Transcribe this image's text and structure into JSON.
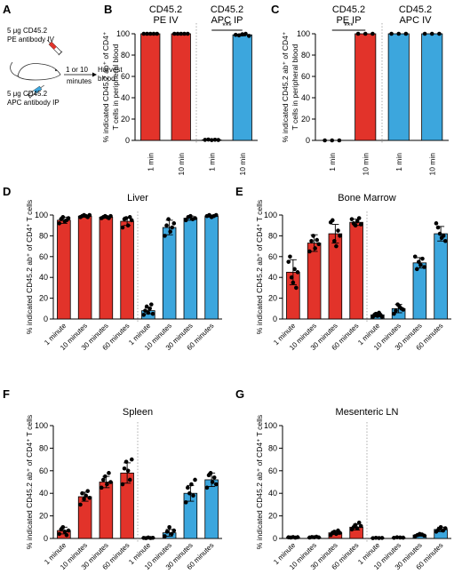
{
  "colors": {
    "red": "#e2332a",
    "blue": "#3ca6dd",
    "point": "#000000",
    "axis": "#000000",
    "divider": "#9a9a9a"
  },
  "panel_letters": [
    "A",
    "B",
    "C",
    "D",
    "E",
    "F",
    "G"
  ],
  "schematic": {
    "pe_dose": "5 μg CD45.2",
    "pe_route": "PE antibody IV",
    "apc_dose": "5 μg CD45.2",
    "apc_route": "APC antibody IP",
    "interval_1": "1 or 10",
    "interval_2": "minutes",
    "harvest_1": "Harvest",
    "harvest_2": "blood",
    "syringe_icon": "syringe-icon",
    "mouse_icon": "mouse-icon"
  },
  "chart_data": [
    {
      "id": "B",
      "type": "bar",
      "ylabel_lines": [
        "% indicated CD45.2 ab⁺ of CD4⁺",
        "T cells in peripheral blood"
      ],
      "ylim": [
        0,
        100
      ],
      "yticks": [
        0,
        20,
        40,
        60,
        80,
        100
      ],
      "group_headers": [
        {
          "lines": [
            "CD45.2",
            "PE IV"
          ],
          "color": "#e2332a"
        },
        {
          "lines": [
            "CD45.2",
            "APC IP"
          ],
          "color": "#3ca6dd"
        }
      ],
      "categories": [
        "1 min",
        "10 min",
        "1 min",
        "10 min"
      ],
      "bar_colors": [
        "#e2332a",
        "#e2332a",
        "#3ca6dd",
        "#3ca6dd"
      ],
      "values": [
        100,
        100,
        0.5,
        99
      ],
      "errors": [
        0,
        0,
        0.3,
        1
      ],
      "points": [
        [
          100,
          100,
          100,
          100,
          100
        ],
        [
          100,
          100,
          100,
          100,
          100
        ],
        [
          0.5,
          0.8,
          0.3,
          0.6,
          0.4
        ],
        [
          99,
          98.5,
          99.5,
          100,
          98
        ]
      ],
      "annotations": [
        {
          "text": "***",
          "between": [
            2,
            3
          ]
        }
      ]
    },
    {
      "id": "C",
      "type": "bar",
      "ylabel_lines": [
        "% indicated CD45.2 ab⁺ of CD4⁺",
        "T cells in peripheral blood"
      ],
      "ylim": [
        0,
        100
      ],
      "yticks": [
        0,
        20,
        40,
        60,
        80,
        100
      ],
      "group_headers": [
        {
          "lines": [
            "CD45.2",
            "PE IP"
          ],
          "color": "#e2332a"
        },
        {
          "lines": [
            "CD45.2",
            "APC IV"
          ],
          "color": "#3ca6dd"
        }
      ],
      "categories": [
        "1 min",
        "10 min",
        "1 min",
        "10 min"
      ],
      "bar_colors": [
        "#e2332a",
        "#e2332a",
        "#3ca6dd",
        "#3ca6dd"
      ],
      "values": [
        0,
        100,
        100,
        100
      ],
      "errors": [
        0,
        0,
        0,
        0
      ],
      "points": [
        [
          0,
          0,
          0
        ],
        [
          100,
          100,
          100
        ],
        [
          100,
          100,
          100
        ],
        [
          100,
          100,
          100
        ]
      ],
      "annotations": [
        {
          "text": "***",
          "between": [
            0,
            1
          ]
        }
      ]
    },
    {
      "id": "D",
      "type": "bar",
      "title": "Liver",
      "ylabel": "% indicated CD45.2 ab⁺ of CD4⁺ T cells",
      "ylim": [
        0,
        100
      ],
      "yticks": [
        0,
        20,
        40,
        60,
        80,
        100
      ],
      "categories": [
        "1 minute",
        "10 minutes",
        "30 minutes",
        "60 minutes",
        "1 minute",
        "10 minutes",
        "30 minutes",
        "60 minutes"
      ],
      "bar_colors": [
        "#e2332a",
        "#e2332a",
        "#e2332a",
        "#e2332a",
        "#3ca6dd",
        "#3ca6dd",
        "#3ca6dd",
        "#3ca6dd"
      ],
      "values": [
        95,
        99,
        98,
        94,
        8,
        88,
        97,
        99
      ],
      "errors": [
        3,
        1,
        1,
        4,
        3,
        7,
        2,
        1
      ],
      "points": [
        [
          92,
          96,
          98,
          94,
          95,
          97
        ],
        [
          98,
          99,
          100,
          99,
          98,
          100
        ],
        [
          97,
          98,
          99,
          98,
          97,
          99
        ],
        [
          88,
          96,
          97,
          90,
          98,
          95
        ],
        [
          4,
          8,
          12,
          6,
          10,
          14,
          5
        ],
        [
          80,
          90,
          96,
          84,
          88,
          92
        ],
        [
          95,
          98,
          99,
          96,
          97
        ],
        [
          99,
          100,
          98,
          99,
          100
        ]
      ]
    },
    {
      "id": "E",
      "type": "bar",
      "title": "Bone Marrow",
      "ylabel": "% indicated CD45.2 ab⁺ of CD4⁺ T cells",
      "ylim": [
        0,
        100
      ],
      "yticks": [
        0,
        20,
        40,
        60,
        80,
        100
      ],
      "categories": [
        "1 minute",
        "10 minutes",
        "30 minutes",
        "60 minutes",
        "1 minute",
        "10 minutes",
        "30 minutes",
        "60 minutes"
      ],
      "bar_colors": [
        "#e2332a",
        "#e2332a",
        "#e2332a",
        "#e2332a",
        "#3ca6dd",
        "#3ca6dd",
        "#3ca6dd",
        "#3ca6dd"
      ],
      "values": [
        45,
        73,
        82,
        93,
        4,
        10,
        54,
        82
      ],
      "errors": [
        12,
        8,
        9,
        3,
        2,
        4,
        5,
        7
      ],
      "points": [
        [
          55,
          60,
          40,
          35,
          48,
          30,
          45
        ],
        [
          65,
          75,
          80,
          68,
          76,
          72
        ],
        [
          93,
          95,
          75,
          70,
          85,
          80
        ],
        [
          96,
          92,
          90,
          94,
          97,
          91
        ],
        [
          2,
          4,
          5,
          3,
          6,
          4,
          2
        ],
        [
          5,
          8,
          14,
          12,
          10,
          9
        ],
        [
          60,
          48,
          55,
          52,
          58,
          50
        ],
        [
          92,
          88,
          82,
          78,
          80,
          75
        ]
      ]
    },
    {
      "id": "F",
      "type": "bar",
      "title": "Spleen",
      "ylabel": "% indicated CD45.2 ab⁺ of CD4⁺ T cells",
      "ylim": [
        0,
        100
      ],
      "yticks": [
        0,
        20,
        40,
        60,
        80,
        100
      ],
      "categories": [
        "1 minute",
        "10 minutes",
        "30 minutes",
        "60 minutes",
        "1 minute",
        "10 minutes",
        "30 minutes",
        "60 minutes"
      ],
      "bar_colors": [
        "#e2332a",
        "#e2332a",
        "#e2332a",
        "#e2332a",
        "#3ca6dd",
        "#3ca6dd",
        "#3ca6dd",
        "#3ca6dd"
      ],
      "values": [
        7,
        37,
        50,
        58,
        0.5,
        5,
        40,
        52
      ],
      "errors": [
        3,
        4,
        5,
        9,
        0.3,
        3,
        7,
        6
      ],
      "points": [
        [
          4,
          8,
          10,
          6,
          3,
          7
        ],
        [
          30,
          40,
          35,
          38,
          42,
          36
        ],
        [
          45,
          52,
          55,
          48,
          58,
          50
        ],
        [
          48,
          62,
          68,
          60,
          52,
          70
        ],
        [
          0.5,
          0.3,
          0.8,
          0.4,
          0.6
        ],
        [
          2,
          6,
          10,
          4,
          7
        ],
        [
          32,
          45,
          40,
          48,
          38,
          52
        ],
        [
          45,
          56,
          58,
          50,
          54,
          48
        ]
      ]
    },
    {
      "id": "G",
      "type": "bar",
      "title": "Mesenteric LN",
      "ylabel": "% indicated CD45.2 ab⁺ of CD4⁺ T cells",
      "ylim": [
        0,
        100
      ],
      "yticks": [
        0,
        20,
        40,
        60,
        80,
        100
      ],
      "categories": [
        "1 minute",
        "10 minutes",
        "30 minutes",
        "60 minutes",
        "1 minute",
        "10 minutes",
        "30 minutes",
        "60 minutes"
      ],
      "bar_colors": [
        "#e2332a",
        "#e2332a",
        "#e2332a",
        "#e2332a",
        "#3ca6dd",
        "#3ca6dd",
        "#3ca6dd",
        "#3ca6dd"
      ],
      "values": [
        1,
        1,
        5,
        10,
        0.5,
        0.8,
        3,
        8
      ],
      "errors": [
        0.3,
        0.4,
        1.5,
        2.5,
        0.2,
        0.3,
        1,
        2
      ],
      "points": [
        [
          1,
          0.8,
          1.2,
          0.7,
          1.1
        ],
        [
          0.8,
          1.2,
          1,
          1.5,
          0.9
        ],
        [
          3,
          5,
          6,
          4,
          7,
          5
        ],
        [
          8,
          10,
          12,
          9,
          14,
          11
        ],
        [
          0.3,
          0.6,
          0.4,
          0.5
        ],
        [
          0.6,
          1,
          0.8,
          0.7
        ],
        [
          2,
          3,
          4,
          3.5,
          2.5
        ],
        [
          6,
          8,
          10,
          7,
          9
        ]
      ]
    }
  ]
}
